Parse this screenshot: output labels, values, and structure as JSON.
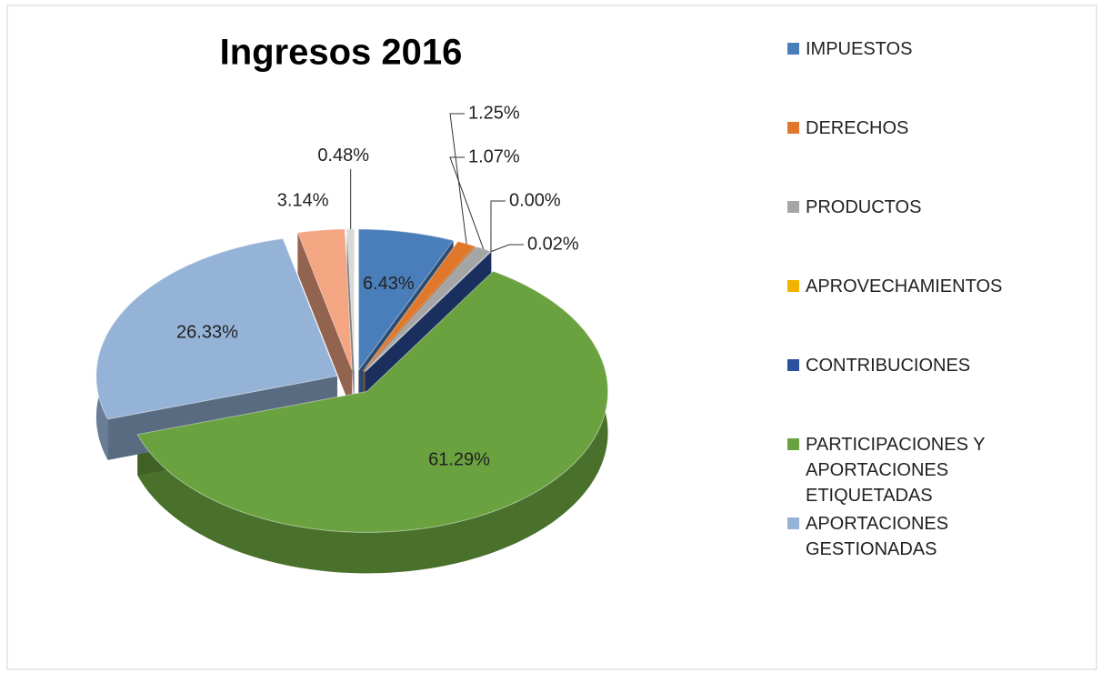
{
  "chart_data": {
    "type": "pie",
    "title": "Ingresos 2016",
    "categories": [
      "IMPUESTOS",
      "DERECHOS",
      "PRODUCTOS",
      "APROVECHAMIENTOS",
      "CONTRIBUCIONES",
      "PARTICIPACIONES Y APORTACIONES ETIQUETADAS",
      "APORTACIONES GESTIONADAS",
      null,
      null
    ],
    "values": [
      6.43,
      1.25,
      1.07,
      0.0,
      0.02,
      61.29,
      26.33,
      3.14,
      0.48
    ],
    "value_labels": [
      "6.43%",
      "1.25%",
      "1.07%",
      "0.00%",
      "0.02%",
      "61.29%",
      "26.33%",
      "3.14%",
      "0.48%"
    ],
    "colors": [
      "#4a7ebb",
      "#e0782c",
      "#a5a5a5",
      "#f0b400",
      "#2c4f9e",
      "#6aa23f",
      "#95b3d7",
      "#f4a582",
      "#d9d9d9"
    ],
    "legend": "right"
  }
}
